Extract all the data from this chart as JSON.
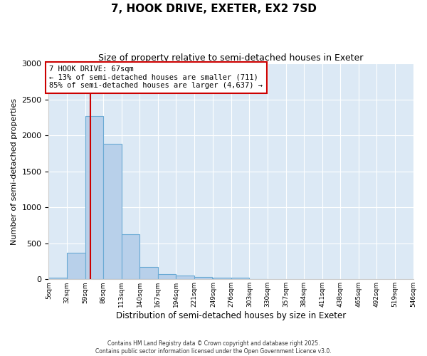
{
  "title": "7, HOOK DRIVE, EXETER, EX2 7SD",
  "subtitle": "Size of property relative to semi-detached houses in Exeter",
  "xlabel": "Distribution of semi-detached houses by size in Exeter",
  "ylabel": "Number of semi-detached properties",
  "bar_color": "#b8d0ea",
  "bar_edge_color": "#6aaad4",
  "background_color": "#dce9f5",
  "fig_background": "#ffffff",
  "grid_color": "#ffffff",
  "property_size": 67,
  "property_label": "7 HOOK DRIVE: 67sqm",
  "annotation_line1": "← 13% of semi-detached houses are smaller (711)",
  "annotation_line2": "85% of semi-detached houses are larger (4,637) →",
  "bin_edges": [
    5,
    32,
    59,
    86,
    113,
    140,
    167,
    194,
    221,
    249,
    276,
    303,
    330,
    357,
    384,
    411,
    438,
    465,
    492,
    519,
    546
  ],
  "bar_heights": [
    20,
    370,
    2270,
    1880,
    630,
    175,
    75,
    50,
    30,
    25,
    20,
    5,
    0,
    0,
    0,
    0,
    0,
    0,
    0,
    0
  ],
  "tick_labels": [
    "5sqm",
    "32sqm",
    "59sqm",
    "86sqm",
    "113sqm",
    "140sqm",
    "167sqm",
    "194sqm",
    "221sqm",
    "249sqm",
    "276sqm",
    "303sqm",
    "330sqm",
    "357sqm",
    "384sqm",
    "411sqm",
    "438sqm",
    "465sqm",
    "492sqm",
    "519sqm",
    "546sqm"
  ],
  "ylim": [
    0,
    3000
  ],
  "yticks": [
    0,
    500,
    1000,
    1500,
    2000,
    2500,
    3000
  ],
  "red_line_color": "#cc0000",
  "box_edge_color": "#cc0000",
  "footnote1": "Contains HM Land Registry data © Crown copyright and database right 2025.",
  "footnote2": "Contains public sector information licensed under the Open Government Licence v3.0."
}
